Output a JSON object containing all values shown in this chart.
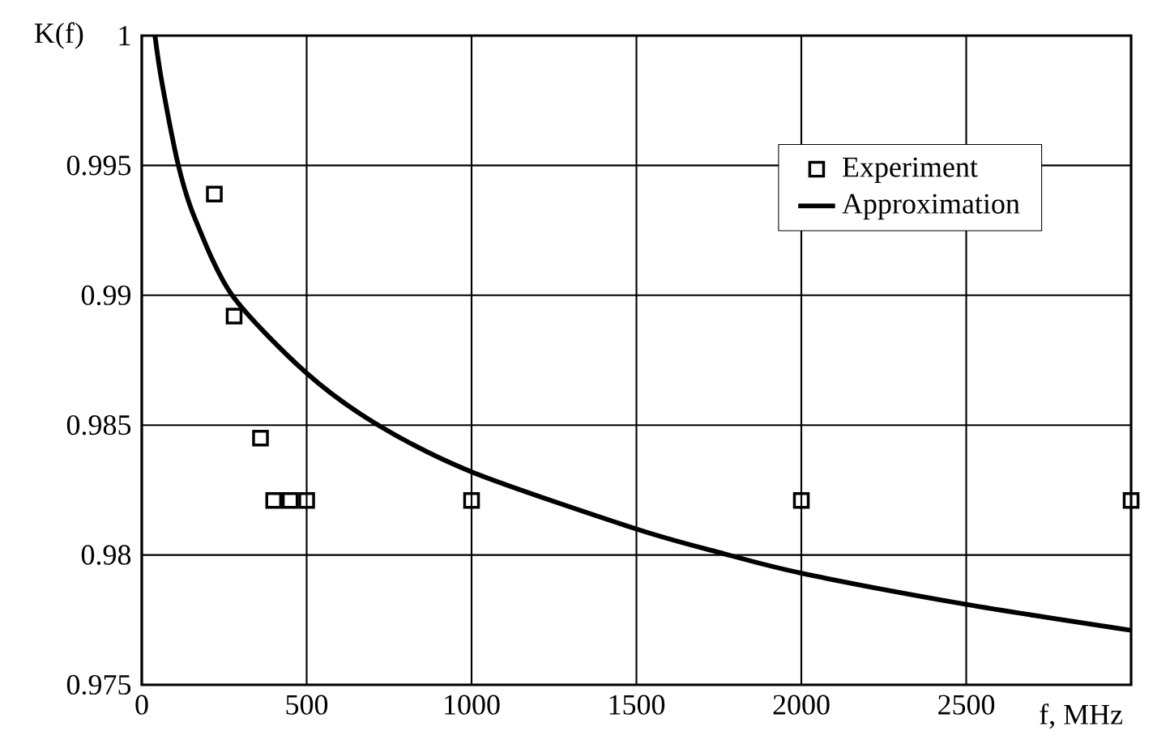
{
  "chart_data": {
    "type": "scatter",
    "xlabel": "f, MHz",
    "ylabel": "K(f)",
    "xlim": [
      0,
      3000
    ],
    "ylim": [
      0.975,
      1
    ],
    "xticks": [
      0,
      500,
      1000,
      1500,
      2000,
      2500
    ],
    "yticks": [
      0.975,
      0.98,
      0.985,
      0.99,
      0.995,
      1
    ],
    "grid": true,
    "legend": "top right",
    "marker": "square",
    "series": [
      {
        "name": "Experiment",
        "color": "#000000",
        "x": [
          220,
          280,
          360,
          400,
          450,
          500,
          1000,
          2000,
          3000
        ],
        "values": [
          0.9939,
          0.9892,
          0.9845,
          0.9821,
          0.9821,
          0.9821,
          0.9821,
          0.9821,
          0.9821
        ]
      },
      {
        "name": "Approximation",
        "type": "line",
        "marker": "none",
        "color": "#000000",
        "x": [
          40,
          61,
          111,
          160,
          274,
          500,
          717,
          1000,
          1500,
          1750,
          2000,
          2500,
          3000
        ],
        "values": [
          1.0,
          0.9982,
          0.995,
          0.993,
          0.99,
          0.987,
          0.985,
          0.9832,
          0.981,
          0.9801,
          0.9793,
          0.9781,
          0.9771
        ]
      }
    ]
  }
}
